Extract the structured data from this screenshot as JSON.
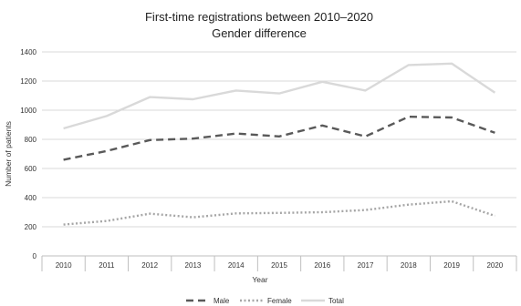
{
  "chart_data": {
    "type": "line",
    "title": "First-time registrations between 2010–2020",
    "subtitle": "Gender difference",
    "xlabel": "Year",
    "ylabel": "Number of patients",
    "ylim": [
      0,
      1400
    ],
    "yticks": [
      "0",
      "200",
      "400",
      "600",
      "800",
      "1000",
      "1200",
      "1400"
    ],
    "grid": true,
    "legend_position": "bottom",
    "x": [
      "2010",
      "2011",
      "2012",
      "2013",
      "2014",
      "2015",
      "2016",
      "2017",
      "2018",
      "2019",
      "2020"
    ],
    "series": [
      {
        "name": "Male",
        "color": "#595959",
        "style": "dashed",
        "values": [
          660,
          720,
          795,
          805,
          840,
          820,
          895,
          820,
          955,
          950,
          845
        ]
      },
      {
        "name": "Female",
        "color": "#a6a6a6",
        "style": "dotted",
        "values": [
          215,
          240,
          290,
          265,
          292,
          295,
          300,
          315,
          352,
          375,
          275
        ]
      },
      {
        "name": "Total",
        "color": "#d9d9d9",
        "style": "solid",
        "values": [
          875,
          960,
          1090,
          1075,
          1135,
          1115,
          1195,
          1135,
          1310,
          1320,
          1120
        ]
      }
    ]
  }
}
